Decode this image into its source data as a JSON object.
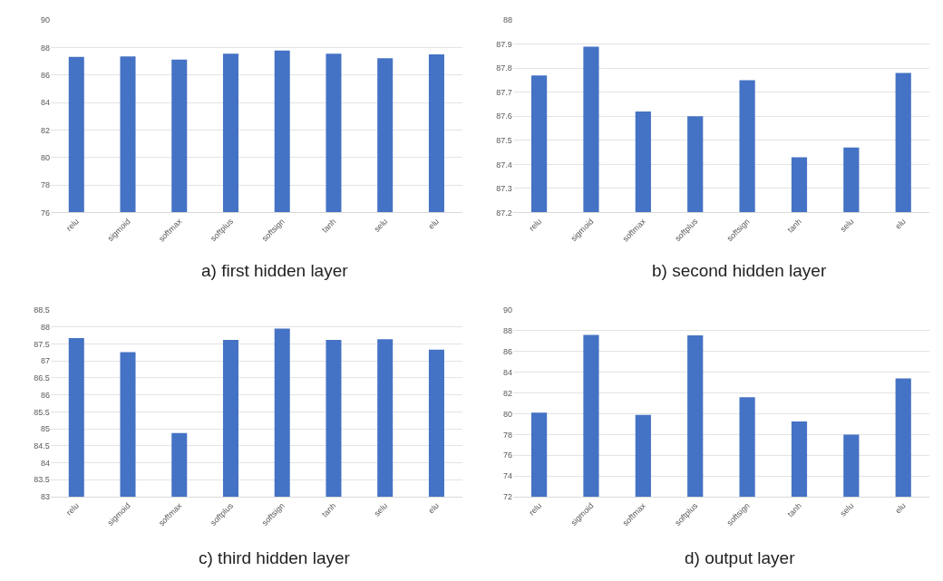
{
  "chart_data": [
    {
      "type": "bar",
      "title": "a) first hidden layer",
      "categories": [
        "relu",
        "sigmoid",
        "softmax",
        "softplus",
        "softsign",
        "tanh",
        "selu",
        "elu"
      ],
      "values": [
        87.33,
        87.36,
        87.13,
        87.56,
        87.78,
        87.56,
        87.22,
        87.51
      ],
      "color": "#4472c4",
      "ylim": [
        76,
        90
      ],
      "yticks": [
        76,
        78,
        80,
        82,
        84,
        86,
        88,
        90
      ],
      "grid": "y"
    },
    {
      "type": "bar",
      "title": "b) second hidden layer",
      "categories": [
        "relu",
        "sigmoid",
        "softmax",
        "softplus",
        "softsign",
        "tanh",
        "selu",
        "elu"
      ],
      "values": [
        87.77,
        87.89,
        87.62,
        87.6,
        87.75,
        87.43,
        87.47,
        87.78
      ],
      "color": "#4472c4",
      "ylim": [
        87.2,
        88
      ],
      "yticks": [
        87.2,
        87.3,
        87.4,
        87.5,
        87.6,
        87.7,
        87.8,
        87.9,
        88
      ],
      "grid": "y"
    },
    {
      "type": "bar",
      "title": "c) third hidden layer",
      "categories": [
        "relu",
        "sigmoid",
        "softmax",
        "softplus",
        "softsign",
        "tanh",
        "selu",
        "elu"
      ],
      "values": [
        87.67,
        87.26,
        84.88,
        87.62,
        87.95,
        87.62,
        87.64,
        87.33
      ],
      "color": "#4472c4",
      "ylim": [
        83,
        88.5
      ],
      "yticks": [
        83,
        83.5,
        84,
        84.5,
        85,
        85.5,
        86,
        86.5,
        87,
        87.5,
        88,
        88.5
      ],
      "grid": "y"
    },
    {
      "type": "bar",
      "title": "d) output layer",
      "categories": [
        "relu",
        "sigmoid",
        "softmax",
        "softplus",
        "softsign",
        "tanh",
        "selu",
        "elu"
      ],
      "values": [
        80.1,
        87.6,
        79.9,
        87.55,
        81.6,
        79.25,
        78.0,
        83.4
      ],
      "color": "#4472c4",
      "ylim": [
        72,
        90
      ],
      "yticks": [
        72,
        74,
        76,
        78,
        80,
        82,
        84,
        86,
        88,
        90
      ],
      "grid": "y"
    }
  ]
}
